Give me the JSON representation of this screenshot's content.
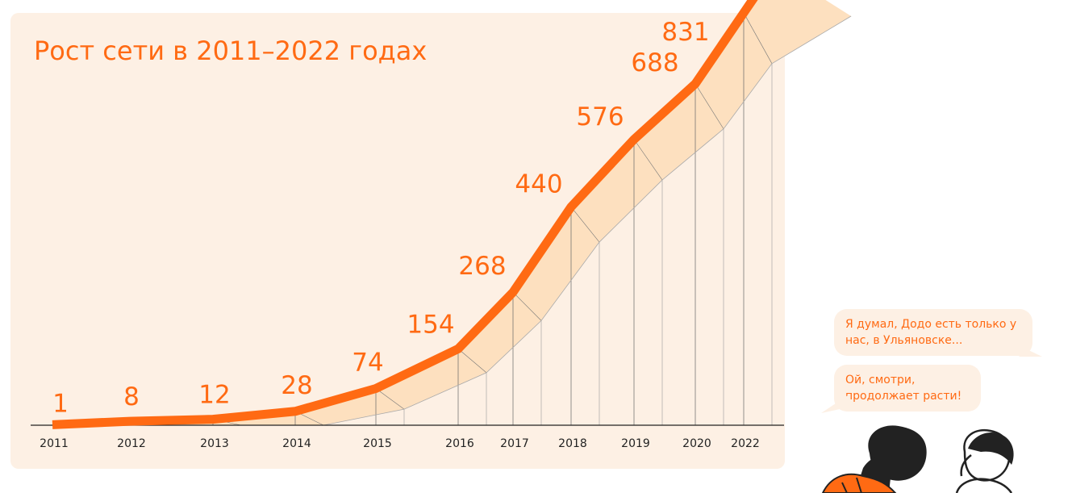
{
  "chart_data": {
    "type": "area",
    "title": "Рост сети в 2011–2022 годах",
    "xlabel": "",
    "ylabel": "",
    "grid": false,
    "x": [
      "2011",
      "2012",
      "2013",
      "2014",
      "2015",
      "2016",
      "2017",
      "2018",
      "2019",
      "2020",
      "2022"
    ],
    "series": [
      {
        "values": [
          1,
          8,
          12,
          28,
          74,
          154,
          268,
          440,
          576,
          688,
          831
        ],
        "labels": [
          "1",
          "8",
          "12",
          "28",
          "74",
          "154",
          "268",
          "440",
          "576",
          "688",
          "831"
        ]
      }
    ],
    "colors": {
      "line": "#ff6a13",
      "band": "#fde0bf",
      "panel": "#fdf0e4",
      "ink": "#222222"
    }
  },
  "bubbles": [
    {
      "text": "Я думал, Додо есть только у нас, в Ульяновске..."
    },
    {
      "text": "Ой, смотри, продолжает расти!"
    }
  ]
}
